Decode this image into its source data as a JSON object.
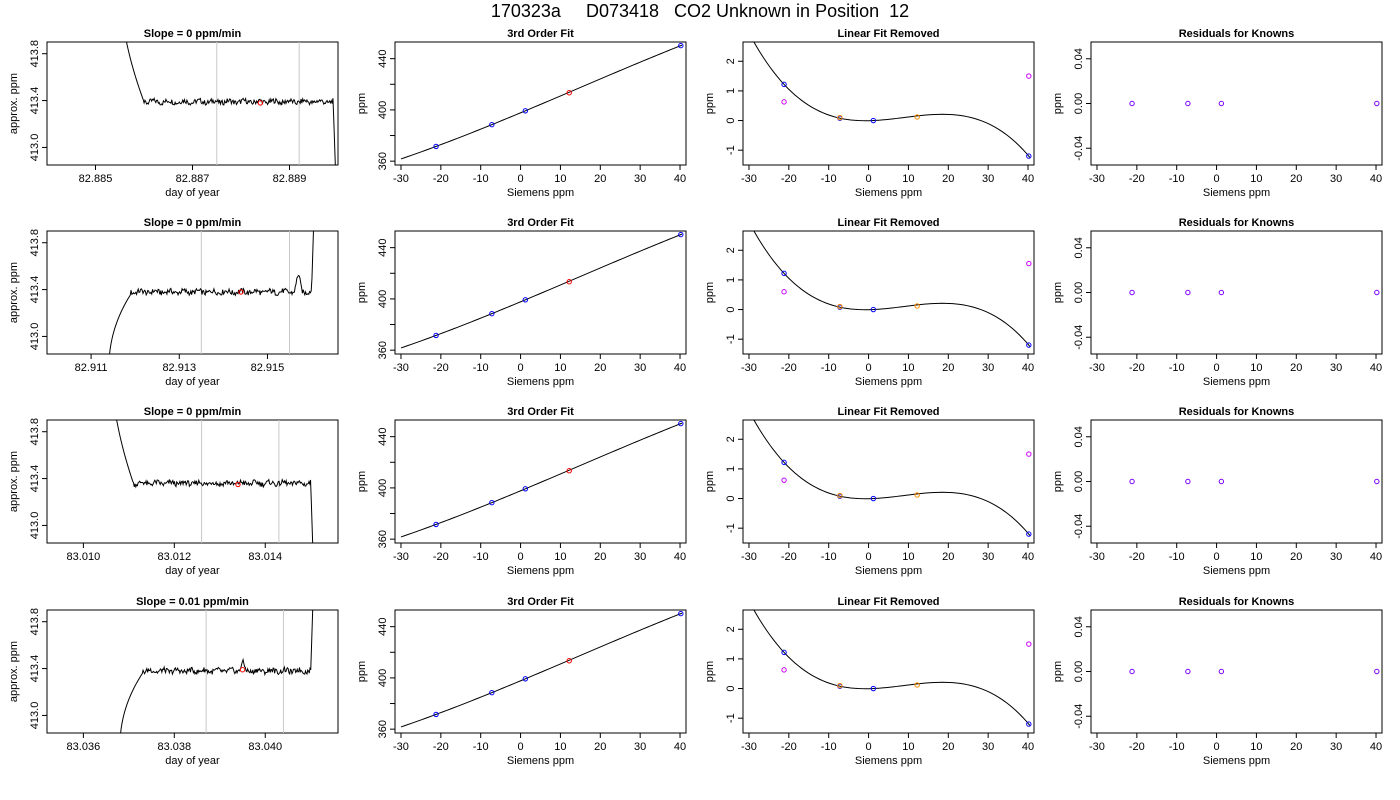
{
  "figure": {
    "title": "170323a     D073418   CO2 Unknown in Position  12"
  },
  "style": {
    "known_color": "#0000ff",
    "unknown_color": "#ff0000",
    "orange_color": "#ff8c00",
    "magenta_color": "#cc00ff",
    "purple_color": "#7a00ff",
    "gridline_color": "#c8c8c8"
  },
  "rows": [
    {
      "timeseries": {
        "title": "Slope =  0  ppm/min",
        "xlabel": "day of year",
        "ylabel": "approx. ppm",
        "xlim": [
          82.884,
          82.89
        ],
        "ylim": [
          412.85,
          413.9
        ],
        "xticks": [
          82.885,
          82.887,
          82.889
        ],
        "xtick_labels": [
          "82.885",
          "82.887",
          "82.889"
        ],
        "yticks": [
          413.0,
          413.4,
          413.8
        ],
        "ytick_labels": [
          "413.0",
          "413.4",
          "413.8"
        ],
        "start": 82.8855,
        "plateau_start": 82.886,
        "end_fall": 82.8899,
        "end": 82.89,
        "level": 413.39,
        "vlines": [
          82.8875,
          82.8892
        ],
        "marker": [
          82.8884,
          413.38
        ],
        "spike": null
      },
      "fit": {
        "title": "3rd Order Fit",
        "xlabel": "Siemens ppm",
        "ylabel": "ppm",
        "xlim": [
          -31.5,
          41.5
        ],
        "ylim": [
          357,
          453
        ],
        "xticks": [
          -30,
          -20,
          -10,
          0,
          10,
          20,
          30,
          40
        ],
        "yticks": [
          360,
          400,
          440
        ],
        "known_x": [
          -21.2,
          -7.2,
          1.2,
          40.2
        ],
        "known_y": [
          371.5,
          388.5,
          399.3,
          450.2
        ],
        "unknown": [
          12.2,
          413.4
        ]
      },
      "resid": {
        "title": "Linear Fit Removed",
        "xlabel": "Siemens ppm",
        "ylabel": "ppm",
        "xlim": [
          -31.5,
          41.5
        ],
        "ylim": [
          -1.5,
          2.65
        ],
        "xticks": [
          -30,
          -20,
          -10,
          0,
          10,
          20,
          30,
          40
        ],
        "yticks": [
          -1,
          0,
          1,
          2
        ],
        "known_x": [
          -21.2,
          -7.2,
          1.2,
          40.2
        ],
        "known_y": [
          1.22,
          0.08,
          0.0,
          -1.2
        ],
        "extra_x": [
          -21.2,
          40.2
        ],
        "extra_y": [
          0.63,
          1.5
        ],
        "unknown": [
          12.2,
          0.12
        ]
      },
      "knowns": {
        "title": "Residuals for Knowns",
        "xlabel": "Siemens ppm",
        "ylabel": "ppm",
        "xlim": [
          -31.5,
          41.5
        ],
        "ylim": [
          -0.055,
          0.055
        ],
        "xticks": [
          -30,
          -20,
          -10,
          0,
          10,
          20,
          30,
          40
        ],
        "yticks": [
          -0.04,
          0.0,
          0.04
        ],
        "ytick_labels": [
          "-0.04",
          "0.00",
          "0.04"
        ],
        "known_x": [
          -21.2,
          -7.2,
          1.2,
          40.2
        ],
        "known_y": [
          0,
          0,
          0,
          0
        ]
      }
    },
    {
      "timeseries": {
        "title": "Slope =  0  ppm/min",
        "xlabel": "day of year",
        "ylabel": "approx. ppm",
        "xlim": [
          82.91,
          82.9166
        ],
        "ylim": [
          412.85,
          413.9
        ],
        "xticks": [
          82.911,
          82.913,
          82.915
        ],
        "xtick_labels": [
          "82.911",
          "82.913",
          "82.915"
        ],
        "yticks": [
          413.0,
          413.4,
          413.8
        ],
        "ytick_labels": [
          "413.0",
          "413.4",
          "413.8"
        ],
        "start": 82.9114,
        "plateau_start": 82.9119,
        "end_fall": 82.916,
        "end": 82.9161,
        "level": 413.38,
        "vlines": [
          82.9135,
          82.9155
        ],
        "marker": [
          82.9144,
          413.38
        ],
        "spike": [
          82.9157,
          413.52
        ]
      },
      "fit": {
        "title": "3rd Order Fit",
        "xlabel": "Siemens ppm",
        "ylabel": "ppm",
        "xlim": [
          -31.5,
          41.5
        ],
        "ylim": [
          357,
          453
        ],
        "xticks": [
          -30,
          -20,
          -10,
          0,
          10,
          20,
          30,
          40
        ],
        "yticks": [
          360,
          400,
          440
        ],
        "known_x": [
          -21.2,
          -7.2,
          1.2,
          40.2
        ],
        "known_y": [
          371.5,
          388.5,
          399.3,
          450.2
        ],
        "unknown": [
          12.2,
          413.4
        ]
      },
      "resid": {
        "title": "Linear Fit Removed",
        "xlabel": "Siemens ppm",
        "ylabel": "ppm",
        "xlim": [
          -31.5,
          41.5
        ],
        "ylim": [
          -1.5,
          2.65
        ],
        "xticks": [
          -30,
          -20,
          -10,
          0,
          10,
          20,
          30,
          40
        ],
        "yticks": [
          -1,
          0,
          1,
          2
        ],
        "known_x": [
          -21.2,
          -7.2,
          1.2,
          40.2
        ],
        "known_y": [
          1.22,
          0.08,
          0.0,
          -1.2
        ],
        "extra_x": [
          -21.2,
          40.2
        ],
        "extra_y": [
          0.6,
          1.55
        ],
        "unknown": [
          12.2,
          0.12
        ]
      },
      "knowns": {
        "title": "Residuals for Knowns",
        "xlabel": "Siemens ppm",
        "ylabel": "ppm",
        "xlim": [
          -31.5,
          41.5
        ],
        "ylim": [
          -0.055,
          0.055
        ],
        "xticks": [
          -30,
          -20,
          -10,
          0,
          10,
          20,
          30,
          40
        ],
        "yticks": [
          -0.04,
          0.0,
          0.04
        ],
        "ytick_labels": [
          "-0.04",
          "0.00",
          "0.04"
        ],
        "known_x": [
          -21.2,
          -7.2,
          1.2,
          40.2
        ],
        "known_y": [
          0,
          0,
          0,
          0
        ]
      }
    },
    {
      "timeseries": {
        "title": "Slope =  0  ppm/min",
        "xlabel": "day of year",
        "ylabel": "approx. ppm",
        "xlim": [
          83.0092,
          83.0156
        ],
        "ylim": [
          412.85,
          413.9
        ],
        "xticks": [
          83.01,
          83.012,
          83.014
        ],
        "xtick_labels": [
          "83.010",
          "83.012",
          "83.014"
        ],
        "yticks": [
          413.0,
          413.4,
          413.8
        ],
        "ytick_labels": [
          "413.0",
          "413.4",
          "413.8"
        ],
        "start": 83.0106,
        "plateau_start": 83.0111,
        "end_fall": 83.015,
        "end": 83.0151,
        "level": 413.36,
        "vlines": [
          83.0126,
          83.0143
        ],
        "marker": [
          83.0134,
          413.35
        ],
        "spike": null
      },
      "fit": {
        "title": "3rd Order Fit",
        "xlabel": "Siemens ppm",
        "ylabel": "ppm",
        "xlim": [
          -31.5,
          41.5
        ],
        "ylim": [
          357,
          453
        ],
        "xticks": [
          -30,
          -20,
          -10,
          0,
          10,
          20,
          30,
          40
        ],
        "yticks": [
          360,
          400,
          440
        ],
        "known_x": [
          -21.2,
          -7.2,
          1.2,
          40.2
        ],
        "known_y": [
          371.5,
          388.5,
          399.3,
          450.2
        ],
        "unknown": [
          12.2,
          413.4
        ]
      },
      "resid": {
        "title": "Linear Fit Removed",
        "xlabel": "Siemens ppm",
        "ylabel": "ppm",
        "xlim": [
          -31.5,
          41.5
        ],
        "ylim": [
          -1.5,
          2.65
        ],
        "xticks": [
          -30,
          -20,
          -10,
          0,
          10,
          20,
          30,
          40
        ],
        "yticks": [
          -1,
          0,
          1,
          2
        ],
        "known_x": [
          -21.2,
          -7.2,
          1.2,
          40.2
        ],
        "known_y": [
          1.22,
          0.08,
          0.0,
          -1.2
        ],
        "extra_x": [
          -21.2,
          40.2
        ],
        "extra_y": [
          0.62,
          1.5
        ],
        "unknown": [
          12.2,
          0.12
        ]
      },
      "knowns": {
        "title": "Residuals for Knowns",
        "xlabel": "Siemens ppm",
        "ylabel": "ppm",
        "xlim": [
          -31.5,
          41.5
        ],
        "ylim": [
          -0.055,
          0.055
        ],
        "xticks": [
          -30,
          -20,
          -10,
          0,
          10,
          20,
          30,
          40
        ],
        "yticks": [
          -0.04,
          0.0,
          0.04
        ],
        "ytick_labels": [
          "-0.04",
          "0.00",
          "0.04"
        ],
        "known_x": [
          -21.2,
          -7.2,
          1.2,
          40.2
        ],
        "known_y": [
          0,
          0,
          0,
          0
        ]
      }
    },
    {
      "timeseries": {
        "title": "Slope =  0.01  ppm/min",
        "xlabel": "day of year",
        "ylabel": "approx. ppm",
        "xlim": [
          83.0352,
          83.0416
        ],
        "ylim": [
          412.85,
          413.9
        ],
        "xticks": [
          83.036,
          83.038,
          83.04
        ],
        "xtick_labels": [
          "83.036",
          "83.038",
          "83.040"
        ],
        "yticks": [
          413.0,
          413.4,
          413.8
        ],
        "ytick_labels": [
          "413.0",
          "413.4",
          "413.8"
        ],
        "start": 83.0368,
        "plateau_start": 83.0373,
        "end_fall": 83.041,
        "end": 83.0411,
        "level": 413.38,
        "vlines": [
          83.0387,
          83.0404
        ],
        "marker": [
          83.0395,
          413.39
        ],
        "spike": [
          83.0395,
          413.45
        ]
      },
      "fit": {
        "title": "3rd Order Fit",
        "xlabel": "Siemens ppm",
        "ylabel": "ppm",
        "xlim": [
          -31.5,
          41.5
        ],
        "ylim": [
          357,
          453
        ],
        "xticks": [
          -30,
          -20,
          -10,
          0,
          10,
          20,
          30,
          40
        ],
        "yticks": [
          360,
          400,
          440
        ],
        "known_x": [
          -21.2,
          -7.2,
          1.2,
          40.2
        ],
        "known_y": [
          371.5,
          388.5,
          399.3,
          450.2
        ],
        "unknown": [
          12.2,
          413.4
        ]
      },
      "resid": {
        "title": "Linear Fit Removed",
        "xlabel": "Siemens ppm",
        "ylabel": "ppm",
        "xlim": [
          -31.5,
          41.5
        ],
        "ylim": [
          -1.5,
          2.65
        ],
        "xticks": [
          -30,
          -20,
          -10,
          0,
          10,
          20,
          30,
          40
        ],
        "yticks": [
          -1,
          0,
          1,
          2
        ],
        "known_x": [
          -21.2,
          -7.2,
          1.2,
          40.2
        ],
        "known_y": [
          1.22,
          0.08,
          0.0,
          -1.2
        ],
        "extra_x": [
          -21.2,
          40.2
        ],
        "extra_y": [
          0.63,
          1.5
        ],
        "unknown": [
          12.2,
          0.12
        ]
      },
      "knowns": {
        "title": "Residuals for Knowns",
        "xlabel": "Siemens ppm",
        "ylabel": "ppm",
        "xlim": [
          -31.5,
          41.5
        ],
        "ylim": [
          -0.055,
          0.055
        ],
        "xticks": [
          -30,
          -20,
          -10,
          0,
          10,
          20,
          30,
          40
        ],
        "yticks": [
          -0.04,
          0.0,
          0.04
        ],
        "ytick_labels": [
          "-0.04",
          "0.00",
          "0.04"
        ],
        "known_x": [
          -21.2,
          -7.2,
          1.2,
          40.2
        ],
        "known_y": [
          0,
          0,
          0,
          0
        ]
      }
    }
  ],
  "chart_data": [
    {
      "type": "line",
      "panel": "row1-timeseries",
      "title": "Slope =  0  ppm/min",
      "xlabel": "day of year",
      "ylabel": "approx. ppm",
      "xlim": [
        82.884,
        82.89
      ],
      "ylim": [
        412.85,
        413.9
      ],
      "level": 413.39,
      "marker": [
        82.8884,
        413.38
      ]
    },
    {
      "type": "scatter",
      "panel": "row1-fit",
      "title": "3rd Order Fit",
      "xlabel": "Siemens ppm",
      "ylabel": "ppm",
      "x": [
        -21.2,
        -7.2,
        1.2,
        12.2,
        40.2
      ],
      "y": [
        371.5,
        388.5,
        399.3,
        413.4,
        450.2
      ]
    },
    {
      "type": "scatter",
      "panel": "row1-resid",
      "title": "Linear Fit Removed",
      "xlabel": "Siemens ppm",
      "ylabel": "ppm",
      "x": [
        -21.2,
        -7.2,
        1.2,
        12.2,
        40.2
      ],
      "y": [
        1.22,
        0.08,
        0.0,
        0.12,
        -1.2
      ]
    },
    {
      "type": "scatter",
      "panel": "row1-knowns",
      "title": "Residuals for Knowns",
      "xlabel": "Siemens ppm",
      "ylabel": "ppm",
      "x": [
        -21.2,
        -7.2,
        1.2,
        40.2
      ],
      "y": [
        0,
        0,
        0,
        0
      ]
    },
    {
      "type": "line",
      "panel": "row2-timeseries",
      "title": "Slope =  0  ppm/min",
      "xlabel": "day of year",
      "ylabel": "approx. ppm",
      "xlim": [
        82.91,
        82.9166
      ],
      "ylim": [
        412.85,
        413.9
      ],
      "level": 413.38,
      "marker": [
        82.9144,
        413.38
      ]
    },
    {
      "type": "scatter",
      "panel": "row2-fit",
      "title": "3rd Order Fit",
      "x": [
        -21.2,
        -7.2,
        1.2,
        12.2,
        40.2
      ],
      "y": [
        371.5,
        388.5,
        399.3,
        413.4,
        450.2
      ]
    },
    {
      "type": "scatter",
      "panel": "row2-resid",
      "title": "Linear Fit Removed",
      "x": [
        -21.2,
        -7.2,
        1.2,
        12.2,
        40.2
      ],
      "y": [
        1.22,
        0.08,
        0.0,
        0.12,
        -1.2
      ]
    },
    {
      "type": "scatter",
      "panel": "row2-knowns",
      "title": "Residuals for Knowns",
      "x": [
        -21.2,
        -7.2,
        1.2,
        40.2
      ],
      "y": [
        0,
        0,
        0,
        0
      ]
    },
    {
      "type": "line",
      "panel": "row3-timeseries",
      "title": "Slope =  0  ppm/min",
      "xlabel": "day of year",
      "ylabel": "approx. ppm",
      "xlim": [
        83.0092,
        83.0156
      ],
      "ylim": [
        412.85,
        413.9
      ],
      "level": 413.36,
      "marker": [
        83.0134,
        413.35
      ]
    },
    {
      "type": "scatter",
      "panel": "row3-fit",
      "title": "3rd Order Fit",
      "x": [
        -21.2,
        -7.2,
        1.2,
        12.2,
        40.2
      ],
      "y": [
        371.5,
        388.5,
        399.3,
        413.4,
        450.2
      ]
    },
    {
      "type": "scatter",
      "panel": "row3-resid",
      "title": "Linear Fit Removed",
      "x": [
        -21.2,
        -7.2,
        1.2,
        12.2,
        40.2
      ],
      "y": [
        1.22,
        0.08,
        0.0,
        0.12,
        -1.2
      ]
    },
    {
      "type": "scatter",
      "panel": "row3-knowns",
      "title": "Residuals for Knowns",
      "x": [
        -21.2,
        -7.2,
        1.2,
        40.2
      ],
      "y": [
        0,
        0,
        0,
        0
      ]
    },
    {
      "type": "line",
      "panel": "row4-timeseries",
      "title": "Slope =  0.01  ppm/min",
      "xlabel": "day of year",
      "ylabel": "approx. ppm",
      "xlim": [
        83.0352,
        83.0416
      ],
      "ylim": [
        412.85,
        413.9
      ],
      "level": 413.38,
      "marker": [
        83.0395,
        413.39
      ]
    },
    {
      "type": "scatter",
      "panel": "row4-fit",
      "title": "3rd Order Fit",
      "x": [
        -21.2,
        -7.2,
        1.2,
        12.2,
        40.2
      ],
      "y": [
        371.5,
        388.5,
        399.3,
        413.4,
        450.2
      ]
    },
    {
      "type": "scatter",
      "panel": "row4-resid",
      "title": "Linear Fit Removed",
      "x": [
        -21.2,
        -7.2,
        1.2,
        12.2,
        40.2
      ],
      "y": [
        1.22,
        0.08,
        0.0,
        0.12,
        -1.2
      ]
    },
    {
      "type": "scatter",
      "panel": "row4-knowns",
      "title": "Residuals for Knowns",
      "x": [
        -21.2,
        -7.2,
        1.2,
        40.2
      ],
      "y": [
        0,
        0,
        0,
        0
      ]
    }
  ]
}
